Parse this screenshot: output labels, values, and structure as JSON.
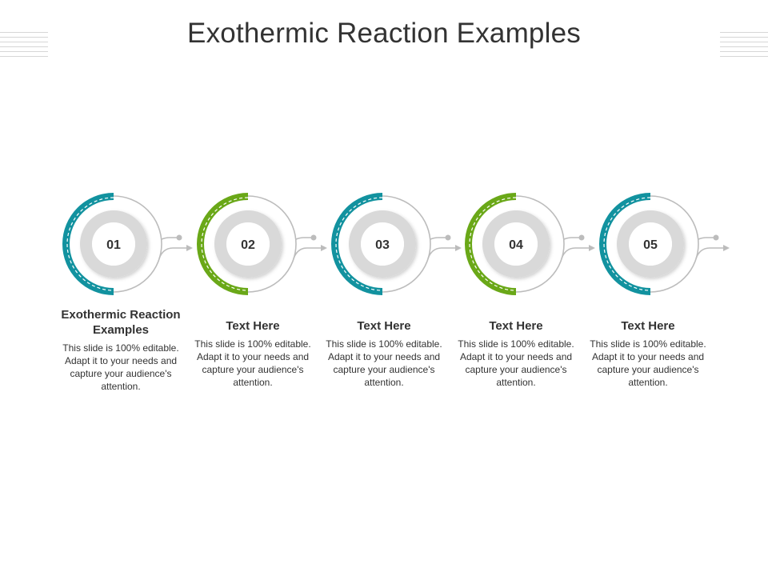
{
  "title": "Exothermic Reaction Examples",
  "colors": {
    "teal": "#12929f",
    "green": "#6aa818",
    "grey_ring": "#d9d9d9",
    "connector": "#bcbcbc",
    "text": "#333333"
  },
  "steps": [
    {
      "number": "01",
      "heading": "Exothermic Reaction Examples",
      "body": "This slide is 100% editable. Adapt it to your needs and capture your audience's attention.",
      "color": "#12929f"
    },
    {
      "number": "02",
      "heading": "Text Here",
      "body": "This slide is 100% editable. Adapt it to your needs and capture your audience's attention.",
      "color": "#6aa818"
    },
    {
      "number": "03",
      "heading": "Text Here",
      "body": "This slide is 100% editable. Adapt it to your needs and capture your audience's attention.",
      "color": "#12929f"
    },
    {
      "number": "04",
      "heading": "Text Here",
      "body": "This slide is 100% editable. Adapt it to your needs and capture your audience's attention.",
      "color": "#6aa818"
    },
    {
      "number": "05",
      "heading": "Text Here",
      "body": "This slide is 100% editable. Adapt it to your needs and capture your audience's attention.",
      "color": "#12929f"
    }
  ]
}
